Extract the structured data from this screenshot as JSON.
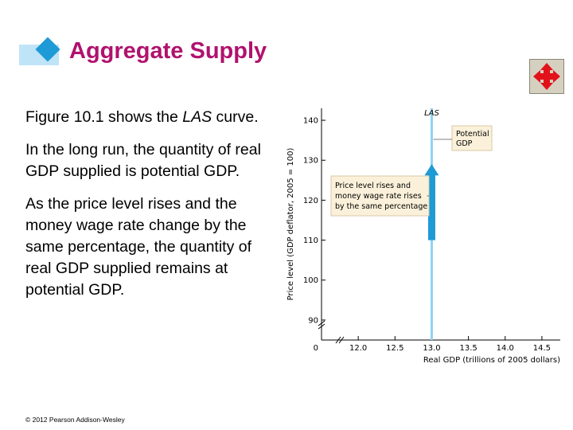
{
  "slide": {
    "title": "Aggregate Supply",
    "para1_pre": "Figure 10.1 shows the ",
    "para1_em": "LAS",
    "para1_post": " curve.",
    "para2": "In the long run, the quantity of real GDP supplied is potential GDP.",
    "para3": "As the price level rises and the money wage rate change by the same percentage, the quantity of real GDP supplied remains at potential GDP.",
    "copyright": "© 2012 Pearson Addison-Wesley",
    "nav_icon": "four-way-arrows-icon"
  },
  "colors": {
    "title": "#b0126e",
    "accent": "#1e9ad6",
    "accent_light": "#bfe4f7",
    "las_line": "#8fd3f4",
    "callout_bg": "#fbf1da",
    "callout_border": "#d8c9a6"
  },
  "chart_data": {
    "type": "line",
    "title": "",
    "xlabel": "Real GDP (trillions of 2005 dollars)",
    "ylabel": "Price level (GDP deflator, 2005 = 100)",
    "xlim": [
      11.5,
      14.75
    ],
    "ylim": [
      85,
      143
    ],
    "x_ticks": [
      "12.0",
      "12.5",
      "13.0",
      "13.5",
      "14.0",
      "14.5"
    ],
    "x_tick_values": [
      12.0,
      12.5,
      13.0,
      13.5,
      14.0,
      14.5
    ],
    "y_ticks": [
      "90",
      "100",
      "110",
      "120",
      "130",
      "140"
    ],
    "y_tick_values": [
      90,
      100,
      110,
      120,
      130,
      140
    ],
    "origin_label": "0",
    "axis_breaks": true,
    "series": [
      {
        "name": "LAS",
        "x": [
          13.0,
          13.0
        ],
        "y": [
          85,
          143
        ]
      }
    ],
    "arrow": {
      "x": 13.0,
      "y_from": 110,
      "y_to": 129,
      "direction": "up"
    },
    "annotations": {
      "las_label": "LAS",
      "potential": [
        "Potential",
        "GDP"
      ],
      "callout": [
        "Price level rises and",
        "money wage rate rises",
        "by the same percentage"
      ]
    }
  }
}
